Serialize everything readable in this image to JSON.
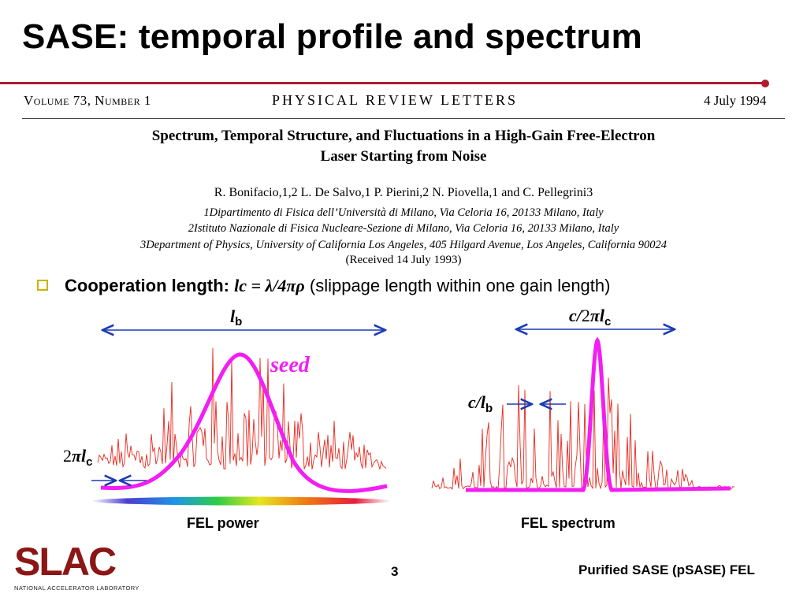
{
  "slide": {
    "title": "SASE: temporal profile and spectrum",
    "page_number": "3",
    "footer_title": "Purified SASE (pSASE) FEL"
  },
  "journal": {
    "volume": "Volume 73, Number 1",
    "name": "PHYSICAL REVIEW LETTERS",
    "date": "4 July 1994"
  },
  "paper": {
    "title_line1": "Spectrum, Temporal Structure, and Fluctuations in a High-Gain Free-Electron",
    "title_line2": "Laser Starting from Noise",
    "authors": "R. Bonifacio,1,2 L. De Salvo,1 P. Pierini,2 N. Piovella,1 and C. Pellegrini3",
    "affiliation1": "1Dipartimento di Fisica dell’Università di Milano, Via Celoria 16, 20133 Milano, Italy",
    "affiliation2": "2Istituto Nazionale di Fisica Nucleare-Sezione di Milano, Via Celoria 16, 20133 Milano, Italy",
    "affiliation3": "3Department of Physics, University of California Los Angeles, 405 Hilgard Avenue, Los Angeles, California 90024",
    "received": "(Received 14 July 1993)"
  },
  "bullet": {
    "label": "Cooperation length:",
    "formula": "lc = λ/4πρ",
    "description": "(slippage length within one gain length)"
  },
  "figure": {
    "left_label_top": "lb",
    "left_label_seed": "seed",
    "left_label_2pilc": "2πlc",
    "left_caption": "FEL power",
    "right_label_top": "c/2πlc",
    "right_label_clb": "c/lb",
    "right_caption": "FEL spectrum",
    "colors": {
      "noise": "#e8281e",
      "seed": "#f21ef2",
      "arrow": "#1a3cb4"
    }
  },
  "logo": {
    "name": "SLAC",
    "subtitle": "NATIONAL ACCELERATOR LABORATORY",
    "color": "#8c1515"
  }
}
